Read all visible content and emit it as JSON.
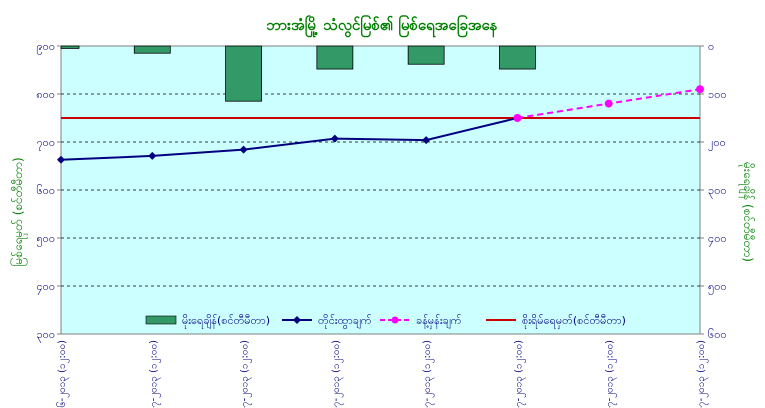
{
  "chart_data": {
    "type": "bar+line",
    "title": "ဘားအံမြို့ သံလွင်မြစ်၏ မြစ်ရေအခြေအနေ",
    "ylabel_left": "မြစ်ရေမှတ် (စင်တီမီတာ)",
    "ylabel_right": "မိုးရေချိန် (စင်တီမီတာ)",
    "left_axis": {
      "ylim": [
        300,
        900
      ],
      "ticks": [
        "၃၀၀",
        "၄၀၀",
        "၅၀၀",
        "၆၀၀",
        "၇၀၀",
        "၈၀၀",
        "၉၀၀"
      ],
      "tick_values": [
        300,
        400,
        500,
        600,
        700,
        800,
        900
      ]
    },
    "right_axis": {
      "ylim": [
        0,
        600
      ],
      "inverted": true,
      "ticks": [
        "၀",
        "၁၀၀",
        "၂၀၀",
        "၃၀၀",
        "၄၀၀",
        "၅၀၀",
        "၆၀၀"
      ],
      "tick_values": [
        0,
        100,
        200,
        300,
        400,
        500,
        600
      ]
    },
    "categories": [
      "၃၀-၆-၂၀၁၃ (၁၂:၀၀)",
      "၁-၇-၂၀၁၃ (၁၂:၀၀)",
      "၂-၇-၂၀၁၃ (၁၂:၀၀)",
      "၃-၇-၂၀၁၃ (၁၂:၀၀)",
      "၄-၇-၂၀၁၃ (၁၂:၀၀)",
      "၅-၇-၂၀၁၃ (၁၂:၀၀)",
      "၆-၇-၂၀၁၃ (၁၂:၀၀)",
      "၇-၇-၂၀၁၃ (၁၂:၀၀)"
    ],
    "series": [
      {
        "name": "မိုးရေချိန်(စင်တီမီတာ)",
        "kind": "bar",
        "axis": "right",
        "color": "#339966",
        "values": [
          5,
          15,
          115,
          48,
          38,
          48,
          null,
          null
        ]
      },
      {
        "name": "တိုင်းထွာချက်",
        "kind": "line",
        "axis": "left",
        "color": "#000080",
        "values": [
          663,
          671,
          684,
          707,
          704,
          750,
          null,
          null
        ]
      },
      {
        "name": "ခန့်မှန်းချက်",
        "kind": "line-dashed",
        "axis": "left",
        "color": "#ff00ff",
        "values": [
          null,
          null,
          null,
          null,
          null,
          750,
          780,
          810
        ]
      },
      {
        "name": "စိုးရိမ်ရေမှတ်(စင်တီမီတာ)",
        "kind": "hline",
        "axis": "left",
        "color": "#cc0000",
        "value": 750
      }
    ],
    "grid": true,
    "legend_position": "bottom-inside",
    "plot_background": "#ccffff"
  }
}
